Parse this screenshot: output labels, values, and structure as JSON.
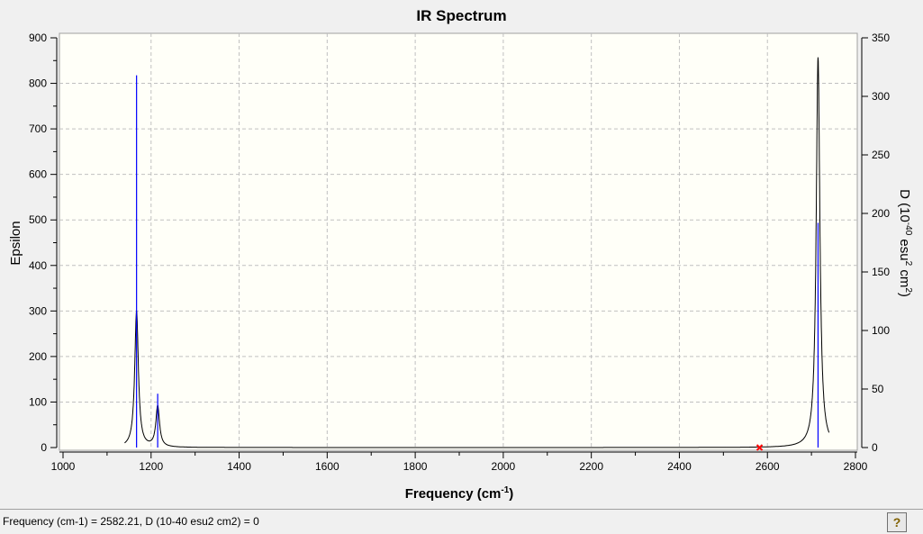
{
  "chart_data": {
    "type": "line",
    "title": "IR Spectrum",
    "xlabel": "Frequency (cm-1)",
    "ylabel_left": "Epsilon",
    "ylabel_right": "D (10-40 esu2 cm2)",
    "xlim": [
      1000,
      2800
    ],
    "ylim_left": [
      0,
      900
    ],
    "ylim_right": [
      0,
      350
    ],
    "x_ticks": [
      1000,
      1200,
      1400,
      1600,
      1800,
      2000,
      2200,
      2400,
      2600,
      2800
    ],
    "y_ticks_left": [
      0,
      100,
      200,
      300,
      400,
      500,
      600,
      700,
      800,
      900
    ],
    "y_ticks_right": [
      0,
      50,
      100,
      150,
      200,
      250,
      300,
      350
    ],
    "grid": true,
    "sticks": [
      {
        "freq": 1167,
        "D": 318
      },
      {
        "freq": 1215,
        "D": 46
      },
      {
        "freq": 2715,
        "D": 192
      }
    ],
    "envelope_peaks": [
      {
        "freq": 1167,
        "epsilon": 300
      },
      {
        "freq": 1215,
        "epsilon": 90
      },
      {
        "freq": 2715,
        "epsilon": 857
      }
    ],
    "cursor": {
      "freq": 2582.21,
      "D": 0
    },
    "colors": {
      "envelope": "#000000",
      "sticks": "#0000ff",
      "cursor": "#ff0000",
      "plot_bg": "#fffff8"
    }
  },
  "status": {
    "text": "Frequency (cm-1) = 2582.21, D (10-40 esu2 cm2) = 0",
    "help_label": "?"
  }
}
